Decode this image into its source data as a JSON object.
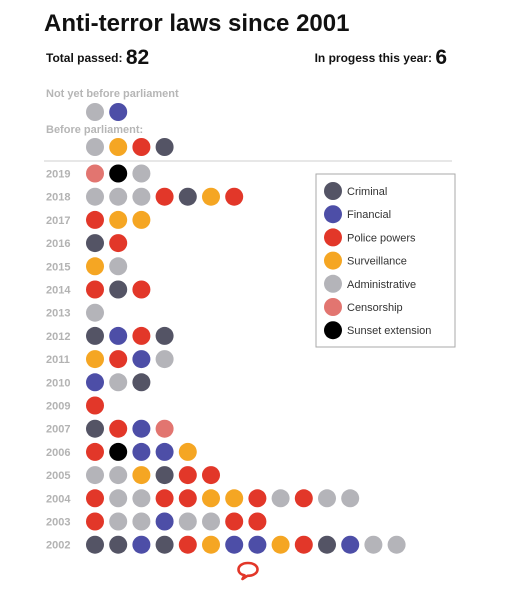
{
  "header": {
    "title": "Anti-terror laws since 2001",
    "total_label": "Total passed:",
    "total_value": "82",
    "in_progress_label": "In progess this year:",
    "in_progress_value": "6"
  },
  "chart_data": {
    "type": "dot-plot",
    "pending": [
      {
        "label": "Not yet before parliament",
        "dots": [
          "administrative",
          "financial"
        ]
      },
      {
        "label": "Before parliament:",
        "dots": [
          "administrative",
          "surveillance",
          "police",
          "criminal"
        ]
      }
    ],
    "years": [
      {
        "year": "2019",
        "dots": [
          "censorship",
          "sunset",
          "administrative"
        ]
      },
      {
        "year": "2018",
        "dots": [
          "administrative",
          "administrative",
          "administrative",
          "police",
          "criminal",
          "surveillance",
          "police"
        ]
      },
      {
        "year": "2017",
        "dots": [
          "police",
          "surveillance",
          "surveillance"
        ]
      },
      {
        "year": "2016",
        "dots": [
          "criminal",
          "police"
        ]
      },
      {
        "year": "2015",
        "dots": [
          "surveillance",
          "administrative"
        ]
      },
      {
        "year": "2014",
        "dots": [
          "police",
          "criminal",
          "police"
        ]
      },
      {
        "year": "2013",
        "dots": [
          "administrative"
        ]
      },
      {
        "year": "2012",
        "dots": [
          "criminal",
          "financial",
          "police",
          "criminal"
        ]
      },
      {
        "year": "2011",
        "dots": [
          "surveillance",
          "police",
          "financial",
          "administrative"
        ]
      },
      {
        "year": "2010",
        "dots": [
          "financial",
          "administrative",
          "criminal"
        ]
      },
      {
        "year": "2009",
        "dots": [
          "police"
        ]
      },
      {
        "year": "2007",
        "dots": [
          "criminal",
          "police",
          "financial",
          "censorship"
        ]
      },
      {
        "year": "2006",
        "dots": [
          "police",
          "sunset",
          "financial",
          "financial",
          "surveillance"
        ]
      },
      {
        "year": "2005",
        "dots": [
          "administrative",
          "administrative",
          "surveillance",
          "criminal",
          "police",
          "police"
        ]
      },
      {
        "year": "2004",
        "dots": [
          "police",
          "administrative",
          "administrative",
          "police",
          "police",
          "surveillance",
          "surveillance",
          "police",
          "administrative",
          "police",
          "administrative",
          "administrative"
        ]
      },
      {
        "year": "2003",
        "dots": [
          "police",
          "administrative",
          "administrative",
          "financial",
          "administrative",
          "administrative",
          "police",
          "police"
        ]
      },
      {
        "year": "2002",
        "dots": [
          "criminal",
          "criminal",
          "financial",
          "criminal",
          "police",
          "surveillance",
          "financial",
          "financial",
          "surveillance",
          "police",
          "criminal",
          "financial",
          "administrative",
          "administrative"
        ]
      }
    ],
    "categories": [
      {
        "key": "criminal",
        "name": "Criminal",
        "color": "#545465"
      },
      {
        "key": "financial",
        "name": "Financial",
        "color": "#4d4ea7"
      },
      {
        "key": "police",
        "name": "Police powers",
        "color": "#e23729"
      },
      {
        "key": "surveillance",
        "name": "Surveillance",
        "color": "#f5a623"
      },
      {
        "key": "administrative",
        "name": "Administrative",
        "color": "#b4b4b9"
      },
      {
        "key": "censorship",
        "name": "Censorship",
        "color": "#e27570"
      },
      {
        "key": "sunset",
        "name": "Sunset extension",
        "color": "#000000"
      }
    ],
    "legend_position": "top-right"
  },
  "brand": {
    "logo_icon": "speech-bubble-logo-icon",
    "color": "#e23729"
  }
}
